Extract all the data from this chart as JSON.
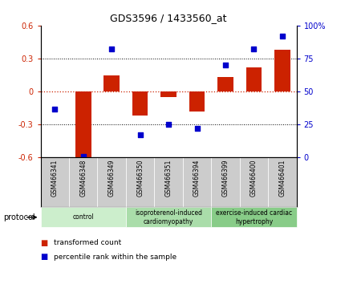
{
  "title": "GDS3596 / 1433560_at",
  "samples": [
    "GSM466341",
    "GSM466348",
    "GSM466349",
    "GSM466350",
    "GSM466351",
    "GSM466394",
    "GSM466399",
    "GSM466400",
    "GSM466401"
  ],
  "transformed_count": [
    0.0,
    -0.62,
    0.15,
    -0.22,
    -0.05,
    -0.18,
    0.13,
    0.22,
    0.38
  ],
  "percentile_rank": [
    37,
    1,
    82,
    17,
    25,
    22,
    70,
    82,
    92
  ],
  "red_color": "#cc2200",
  "blue_color": "#0000cc",
  "bar_width": 0.55,
  "ylim_left": [
    -0.6,
    0.6
  ],
  "ylim_right": [
    0,
    100
  ],
  "yticks_left": [
    -0.6,
    -0.3,
    0.0,
    0.3,
    0.6
  ],
  "yticks_right": [
    0,
    25,
    50,
    75,
    100
  ],
  "ytick_labels_left": [
    "-0.6",
    "-0.3",
    "0",
    "0.3",
    "0.6"
  ],
  "ytick_labels_right": [
    "0",
    "25",
    "50",
    "75",
    "100%"
  ],
  "protocol_groups": [
    {
      "label": "control",
      "n": 3,
      "color": "#cceecc"
    },
    {
      "label": "isoproterenol-induced\ncardiomyopathy",
      "n": 3,
      "color": "#aaddaa"
    },
    {
      "label": "exercise-induced cardiac\nhypertrophy",
      "n": 3,
      "color": "#88cc88"
    }
  ],
  "legend_red_label": "transformed count",
  "legend_blue_label": "percentile rank within the sample",
  "protocol_label": "protocol",
  "bg_color": "#ffffff",
  "plot_bg_color": "#ffffff",
  "sample_box_color": "#cccccc",
  "sample_box_edge": "#888888"
}
